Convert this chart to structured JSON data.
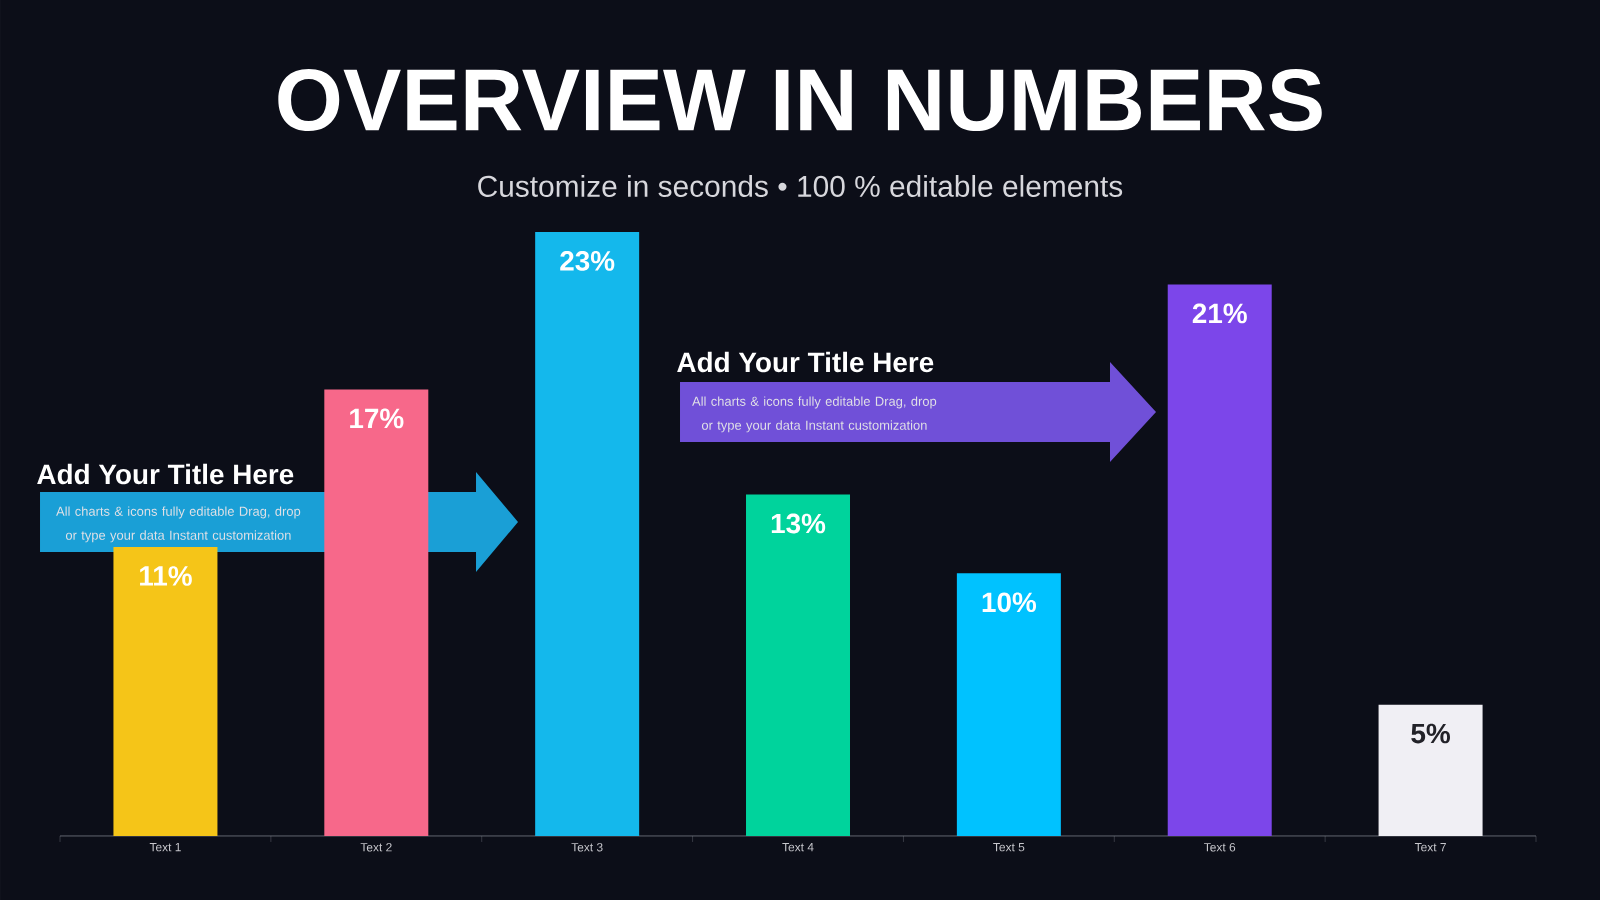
{
  "chart_data": {
    "type": "bar",
    "title": "OVERVIEW IN NUMBERS",
    "subtitle": "Customize in seconds • 100 % editable elements",
    "categories": [
      "Text 1",
      "Text 2",
      "Text 3",
      "Text 4",
      "Text 5",
      "Text 6",
      "Text 7"
    ],
    "values": [
      11,
      17,
      23,
      13,
      10,
      21,
      5
    ],
    "value_labels": [
      "11%",
      "17%",
      "23%",
      "13%",
      "10%",
      "21%",
      "5%"
    ],
    "colors": [
      "#f5c518",
      "#f7688a",
      "#14b8ec",
      "#00d39c",
      "#00c2ff",
      "#7c46ea",
      "#f0eff4"
    ],
    "annotations": [
      "Add Your Title Here",
      "All charts & icons fully editable Drag, drop or type your data Instant customization",
      "Add Your Title Here",
      "All charts & icons fully editable Drag, drop or type your data Instant customization"
    ]
  }
}
